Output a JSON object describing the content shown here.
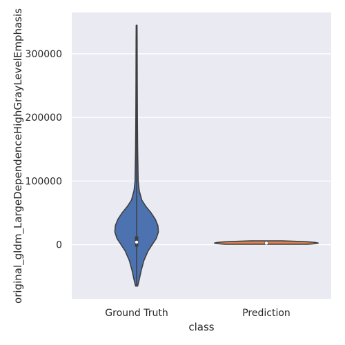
{
  "chart_data": {
    "type": "violin",
    "title": "",
    "xlabel": "class",
    "ylabel": "original_gldm_LargeDependenceHighGrayLevelEmphasis",
    "categories": [
      "Ground Truth",
      "Prediction"
    ],
    "ylim": [
      -85000,
      365000
    ],
    "yticks": [
      0,
      100000,
      200000,
      300000
    ],
    "ytick_labels": [
      "0",
      "100000",
      "200000",
      "300000"
    ],
    "grid": true,
    "series": [
      {
        "category": "Ground Truth",
        "color": "#4c72b0",
        "range": [
          -65000,
          345000
        ],
        "q1": -2000,
        "median": 4000,
        "q3": 12000,
        "density_profile": [
          [
            -65000,
            0.02
          ],
          [
            -55000,
            0.05
          ],
          [
            -40000,
            0.09
          ],
          [
            -25000,
            0.14
          ],
          [
            -10000,
            0.22
          ],
          [
            0,
            0.3
          ],
          [
            10000,
            0.38
          ],
          [
            20000,
            0.42
          ],
          [
            30000,
            0.41
          ],
          [
            40000,
            0.36
          ],
          [
            50000,
            0.28
          ],
          [
            60000,
            0.18
          ],
          [
            70000,
            0.1
          ],
          [
            85000,
            0.05
          ],
          [
            100000,
            0.03
          ],
          [
            150000,
            0.02
          ],
          [
            200000,
            0.015
          ],
          [
            260000,
            0.012
          ],
          [
            320000,
            0.01
          ],
          [
            345000,
            0.008
          ]
        ]
      },
      {
        "category": "Prediction",
        "color": "#dd8452",
        "range": [
          700,
          6000
        ],
        "q1": 1800,
        "median": 2500,
        "q3": 3500,
        "density_profile": [
          [
            700,
            0.8
          ],
          [
            1200,
            0.9
          ],
          [
            1800,
            0.95
          ],
          [
            2500,
            1.0
          ],
          [
            3500,
            0.95
          ],
          [
            4500,
            0.8
          ],
          [
            5300,
            0.55
          ],
          [
            6000,
            0.3
          ]
        ]
      }
    ]
  }
}
